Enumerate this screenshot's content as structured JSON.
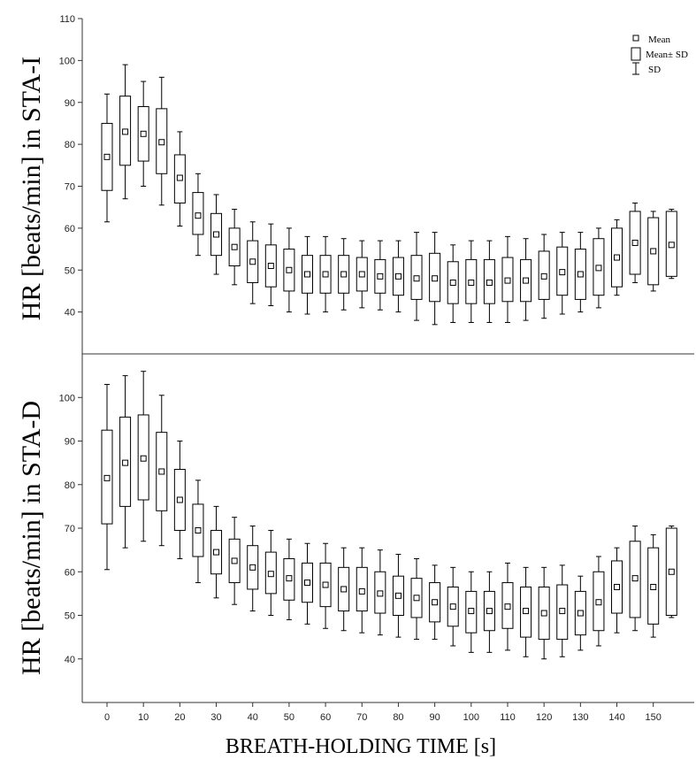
{
  "chart_data": {
    "type": "box",
    "xlabel": "BREATH-HOLDING TIME [s]",
    "x_ticks": [
      0,
      10,
      20,
      30,
      40,
      50,
      60,
      70,
      80,
      90,
      100,
      110,
      120,
      130,
      140,
      150
    ],
    "legend": {
      "mean": "Mean",
      "box": "Mean± SD",
      "whisker": "SD"
    },
    "colors": {
      "stroke": "#000000",
      "axis": "#333333",
      "background": "#ffffff"
    },
    "panels": [
      {
        "ylabel": "HR [beats/min] in STA-I",
        "ylim": [
          30,
          110
        ],
        "yticks": [
          40,
          50,
          60,
          70,
          80,
          90,
          100,
          110
        ],
        "series": [
          {
            "x": 0,
            "whisker_min": 61.5,
            "box_low": 69.0,
            "mean": 77.0,
            "box_high": 85.0,
            "whisker_max": 92.0
          },
          {
            "x": 5,
            "whisker_min": 67.0,
            "box_low": 75.0,
            "mean": 83.0,
            "box_high": 91.5,
            "whisker_max": 99.0
          },
          {
            "x": 10,
            "whisker_min": 70.0,
            "box_low": 76.0,
            "mean": 82.5,
            "box_high": 89.0,
            "whisker_max": 95.0
          },
          {
            "x": 15,
            "whisker_min": 65.5,
            "box_low": 73.0,
            "mean": 80.5,
            "box_high": 88.5,
            "whisker_max": 96.0
          },
          {
            "x": 20,
            "whisker_min": 60.5,
            "box_low": 66.0,
            "mean": 72.0,
            "box_high": 77.5,
            "whisker_max": 83.0
          },
          {
            "x": 25,
            "whisker_min": 53.5,
            "box_low": 58.5,
            "mean": 63.0,
            "box_high": 68.5,
            "whisker_max": 73.0
          },
          {
            "x": 30,
            "whisker_min": 49.0,
            "box_low": 53.5,
            "mean": 58.5,
            "box_high": 63.5,
            "whisker_max": 68.0
          },
          {
            "x": 35,
            "whisker_min": 46.5,
            "box_low": 51.0,
            "mean": 55.5,
            "box_high": 60.0,
            "whisker_max": 64.5
          },
          {
            "x": 40,
            "whisker_min": 42.0,
            "box_low": 47.0,
            "mean": 52.0,
            "box_high": 57.0,
            "whisker_max": 61.5
          },
          {
            "x": 45,
            "whisker_min": 41.5,
            "box_low": 46.0,
            "mean": 51.0,
            "box_high": 56.0,
            "whisker_max": 61.0
          },
          {
            "x": 50,
            "whisker_min": 40.0,
            "box_low": 45.0,
            "mean": 50.0,
            "box_high": 55.0,
            "whisker_max": 60.0
          },
          {
            "x": 55,
            "whisker_min": 39.5,
            "box_low": 44.5,
            "mean": 49.0,
            "box_high": 53.5,
            "whisker_max": 58.0
          },
          {
            "x": 60,
            "whisker_min": 40.0,
            "box_low": 44.5,
            "mean": 49.0,
            "box_high": 53.5,
            "whisker_max": 58.0
          },
          {
            "x": 65,
            "whisker_min": 40.5,
            "box_low": 44.5,
            "mean": 49.0,
            "box_high": 53.5,
            "whisker_max": 57.5
          },
          {
            "x": 70,
            "whisker_min": 41.0,
            "box_low": 45.0,
            "mean": 49.0,
            "box_high": 53.0,
            "whisker_max": 57.0
          },
          {
            "x": 75,
            "whisker_min": 40.5,
            "box_low": 44.5,
            "mean": 48.5,
            "box_high": 52.5,
            "whisker_max": 57.0
          },
          {
            "x": 80,
            "whisker_min": 40.0,
            "box_low": 44.0,
            "mean": 48.5,
            "box_high": 53.0,
            "whisker_max": 57.0
          },
          {
            "x": 85,
            "whisker_min": 38.0,
            "box_low": 43.0,
            "mean": 48.0,
            "box_high": 53.5,
            "whisker_max": 59.0
          },
          {
            "x": 90,
            "whisker_min": 37.0,
            "box_low": 42.5,
            "mean": 48.0,
            "box_high": 54.0,
            "whisker_max": 59.0
          },
          {
            "x": 95,
            "whisker_min": 37.5,
            "box_low": 42.0,
            "mean": 47.0,
            "box_high": 52.0,
            "whisker_max": 56.0
          },
          {
            "x": 100,
            "whisker_min": 37.5,
            "box_low": 42.0,
            "mean": 47.0,
            "box_high": 52.5,
            "whisker_max": 57.0
          },
          {
            "x": 105,
            "whisker_min": 37.5,
            "box_low": 42.0,
            "mean": 47.0,
            "box_high": 52.5,
            "whisker_max": 57.0
          },
          {
            "x": 110,
            "whisker_min": 37.5,
            "box_low": 42.5,
            "mean": 47.5,
            "box_high": 53.0,
            "whisker_max": 58.0
          },
          {
            "x": 115,
            "whisker_min": 38.0,
            "box_low": 42.5,
            "mean": 47.5,
            "box_high": 52.5,
            "whisker_max": 57.5
          },
          {
            "x": 120,
            "whisker_min": 38.5,
            "box_low": 43.0,
            "mean": 48.5,
            "box_high": 54.5,
            "whisker_max": 58.5
          },
          {
            "x": 125,
            "whisker_min": 39.5,
            "box_low": 44.0,
            "mean": 49.5,
            "box_high": 55.5,
            "whisker_max": 59.0
          },
          {
            "x": 130,
            "whisker_min": 40.0,
            "box_low": 43.0,
            "mean": 49.0,
            "box_high": 55.0,
            "whisker_max": 59.0
          },
          {
            "x": 135,
            "whisker_min": 41.0,
            "box_low": 44.0,
            "mean": 50.5,
            "box_high": 57.5,
            "whisker_max": 60.0
          },
          {
            "x": 140,
            "whisker_min": 44.0,
            "box_low": 46.0,
            "mean": 53.0,
            "box_high": 60.0,
            "whisker_max": 62.0
          },
          {
            "x": 145,
            "whisker_min": 47.0,
            "box_low": 49.0,
            "mean": 56.5,
            "box_high": 64.0,
            "whisker_max": 66.0
          },
          {
            "x": 150,
            "whisker_min": 45.0,
            "box_low": 46.5,
            "mean": 54.5,
            "box_high": 62.5,
            "whisker_max": 64.0
          },
          {
            "x": 155,
            "whisker_min": 48.0,
            "box_low": 48.5,
            "mean": 56.0,
            "box_high": 64.0,
            "whisker_max": 64.5
          }
        ]
      },
      {
        "ylabel": "HR [beats/min] in STA-D",
        "ylim": [
          30,
          110
        ],
        "yticks": [
          40,
          50,
          60,
          70,
          80,
          90,
          100
        ],
        "series": [
          {
            "x": 0,
            "whisker_min": 60.5,
            "box_low": 71.0,
            "mean": 81.5,
            "box_high": 92.5,
            "whisker_max": 103.0
          },
          {
            "x": 5,
            "whisker_min": 65.5,
            "box_low": 75.0,
            "mean": 85.0,
            "box_high": 95.5,
            "whisker_max": 105.0
          },
          {
            "x": 10,
            "whisker_min": 67.0,
            "box_low": 76.5,
            "mean": 86.0,
            "box_high": 96.0,
            "whisker_max": 106.0
          },
          {
            "x": 15,
            "whisker_min": 66.0,
            "box_low": 74.0,
            "mean": 83.0,
            "box_high": 92.0,
            "whisker_max": 100.5
          },
          {
            "x": 20,
            "whisker_min": 63.0,
            "box_low": 69.5,
            "mean": 76.5,
            "box_high": 83.5,
            "whisker_max": 90.0
          },
          {
            "x": 25,
            "whisker_min": 57.5,
            "box_low": 63.5,
            "mean": 69.5,
            "box_high": 75.5,
            "whisker_max": 81.0
          },
          {
            "x": 30,
            "whisker_min": 54.0,
            "box_low": 59.5,
            "mean": 64.5,
            "box_high": 69.5,
            "whisker_max": 75.0
          },
          {
            "x": 35,
            "whisker_min": 52.5,
            "box_low": 57.5,
            "mean": 62.5,
            "box_high": 67.5,
            "whisker_max": 72.5
          },
          {
            "x": 40,
            "whisker_min": 51.0,
            "box_low": 56.0,
            "mean": 61.0,
            "box_high": 66.0,
            "whisker_max": 70.5
          },
          {
            "x": 45,
            "whisker_min": 50.0,
            "box_low": 55.0,
            "mean": 59.5,
            "box_high": 64.5,
            "whisker_max": 69.5
          },
          {
            "x": 50,
            "whisker_min": 49.0,
            "box_low": 53.5,
            "mean": 58.5,
            "box_high": 63.0,
            "whisker_max": 67.5
          },
          {
            "x": 55,
            "whisker_min": 48.0,
            "box_low": 53.0,
            "mean": 57.5,
            "box_high": 62.0,
            "whisker_max": 66.5
          },
          {
            "x": 60,
            "whisker_min": 47.0,
            "box_low": 52.0,
            "mean": 57.0,
            "box_high": 62.0,
            "whisker_max": 66.5
          },
          {
            "x": 65,
            "whisker_min": 46.5,
            "box_low": 51.0,
            "mean": 56.0,
            "box_high": 61.0,
            "whisker_max": 65.5
          },
          {
            "x": 70,
            "whisker_min": 46.0,
            "box_low": 51.0,
            "mean": 55.5,
            "box_high": 61.0,
            "whisker_max": 65.5
          },
          {
            "x": 75,
            "whisker_min": 45.5,
            "box_low": 50.5,
            "mean": 55.0,
            "box_high": 60.0,
            "whisker_max": 65.0
          },
          {
            "x": 80,
            "whisker_min": 45.0,
            "box_low": 50.0,
            "mean": 54.5,
            "box_high": 59.0,
            "whisker_max": 64.0
          },
          {
            "x": 85,
            "whisker_min": 44.5,
            "box_low": 49.5,
            "mean": 54.0,
            "box_high": 58.5,
            "whisker_max": 63.0
          },
          {
            "x": 90,
            "whisker_min": 44.5,
            "box_low": 48.5,
            "mean": 53.0,
            "box_high": 57.5,
            "whisker_max": 61.5
          },
          {
            "x": 95,
            "whisker_min": 43.0,
            "box_low": 47.5,
            "mean": 52.0,
            "box_high": 56.5,
            "whisker_max": 61.0
          },
          {
            "x": 100,
            "whisker_min": 41.5,
            "box_low": 46.0,
            "mean": 51.0,
            "box_high": 55.5,
            "whisker_max": 60.0
          },
          {
            "x": 105,
            "whisker_min": 41.5,
            "box_low": 46.5,
            "mean": 51.0,
            "box_high": 55.5,
            "whisker_max": 60.0
          },
          {
            "x": 110,
            "whisker_min": 42.0,
            "box_low": 47.0,
            "mean": 52.0,
            "box_high": 57.5,
            "whisker_max": 62.0
          },
          {
            "x": 115,
            "whisker_min": 40.5,
            "box_low": 45.0,
            "mean": 51.0,
            "box_high": 56.5,
            "whisker_max": 61.0
          },
          {
            "x": 120,
            "whisker_min": 40.0,
            "box_low": 44.5,
            "mean": 50.5,
            "box_high": 56.5,
            "whisker_max": 61.0
          },
          {
            "x": 125,
            "whisker_min": 40.5,
            "box_low": 44.5,
            "mean": 51.0,
            "box_high": 57.0,
            "whisker_max": 61.5
          },
          {
            "x": 130,
            "whisker_min": 42.0,
            "box_low": 45.5,
            "mean": 50.5,
            "box_high": 55.5,
            "whisker_max": 59.0
          },
          {
            "x": 135,
            "whisker_min": 43.0,
            "box_low": 46.5,
            "mean": 53.0,
            "box_high": 60.0,
            "whisker_max": 63.5
          },
          {
            "x": 140,
            "whisker_min": 46.0,
            "box_low": 50.5,
            "mean": 56.5,
            "box_high": 62.5,
            "whisker_max": 65.5
          },
          {
            "x": 145,
            "whisker_min": 46.5,
            "box_low": 49.5,
            "mean": 58.5,
            "box_high": 67.0,
            "whisker_max": 70.5
          },
          {
            "x": 150,
            "whisker_min": 45.0,
            "box_low": 48.0,
            "mean": 56.5,
            "box_high": 65.5,
            "whisker_max": 68.5
          },
          {
            "x": 155,
            "whisker_min": 49.5,
            "box_low": 50.0,
            "mean": 60.0,
            "box_high": 70.0,
            "whisker_max": 70.5
          }
        ]
      }
    ]
  }
}
